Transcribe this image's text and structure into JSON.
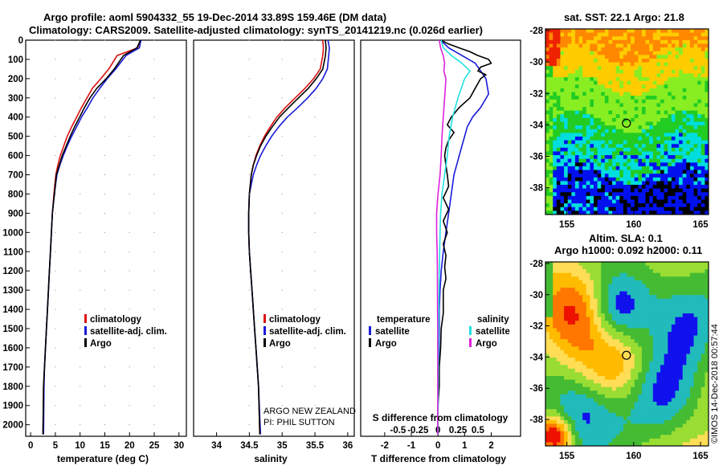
{
  "title": {
    "line1": "Argo profile: aoml 5904332_55 19-Dec-2014 33.89S 159.46E (DM data)",
    "line2": "Climatology: CARS2009. Satellite-adjusted climatology: synTS_20141219.nc (0.026d earlier)"
  },
  "colors": {
    "climatology": "#dd1111",
    "satellite": "#1a1ad8",
    "argo": "#000000",
    "satellite_s": "#22e0e0",
    "argo_s": "#dd22dd"
  },
  "depth_ticks": [
    "0",
    "100",
    "200",
    "300",
    "400",
    "500",
    "600",
    "700",
    "800",
    "900",
    "1000",
    "1100",
    "1200",
    "1300",
    "1400",
    "1500",
    "1600",
    "1700",
    "1800",
    "1900",
    "2000"
  ],
  "panels": {
    "temperature": {
      "xlabel": "temperature (deg C)",
      "xticks": [
        "0",
        "5",
        "10",
        "15",
        "20",
        "25",
        "30"
      ],
      "legend": [
        "climatology",
        "satellite-adj. clim.",
        "Argo"
      ]
    },
    "salinity": {
      "xlabel": "salinity",
      "xticks": [
        "34",
        "34.5",
        "35",
        "35.5",
        "36"
      ],
      "legend": [
        "climatology",
        "satellite-adj. clim.",
        "Argo"
      ],
      "note1": "ARGO NEW ZEALAND",
      "note2": "PI: PHIL SUTTON"
    },
    "difference": {
      "xlabel": "T difference from climatology",
      "xticks": [
        "-2",
        "-1",
        "0",
        "1",
        "2"
      ],
      "top_xlabel": "S difference from climatology",
      "top_xticks": [
        "-0.5",
        "-0.25",
        "0",
        "0.25",
        "0.5"
      ],
      "legend_t_title": "temperature",
      "legend_t": [
        "satellite",
        "Argo"
      ],
      "legend_s_title": "salinity",
      "legend_s": [
        "satellite",
        "Argo"
      ]
    }
  },
  "maps": {
    "sst": {
      "title": "sat. SST: 22.1  Argo: 21.8",
      "yticks": [
        "-28",
        "-30",
        "-32",
        "-34",
        "-36",
        "-38"
      ],
      "xticks": [
        "155",
        "160",
        "165"
      ],
      "marker": {
        "lon": 159.46,
        "lat": -33.89
      },
      "colors": [
        "#ee2200",
        "#ff8800",
        "#ffcc00",
        "#88ee22",
        "#22cc22",
        "#00dddd",
        "#0011ee",
        "#000000"
      ]
    },
    "sla": {
      "title1": "Altim. SLA: 0.1",
      "title2": "Argo h1000: 0.092 h2000: 0.11",
      "yticks": [
        "-28",
        "-30",
        "-32",
        "-34",
        "-36",
        "-38"
      ],
      "xticks": [
        "155",
        "160",
        "165"
      ],
      "marker": {
        "lon": 159.46,
        "lat": -33.89
      },
      "colors": [
        "#ee1100",
        "#ff7700",
        "#ffbb00",
        "#ffdd55",
        "#99dd33",
        "#44bb33",
        "#22bbbb",
        "#1111ee"
      ]
    }
  },
  "credit": "©IMOS 14-Dec-2018 00:57:44",
  "chart_data": [
    {
      "type": "line",
      "title": "temperature (deg C)",
      "xlabel": "temperature (deg C)",
      "ylabel": "",
      "xlim": [
        -1,
        31.5
      ],
      "ylim": [
        2060,
        0
      ],
      "y_reversed": true,
      "series": [
        {
          "name": "climatology",
          "x": [
            22.3,
            21.6,
            17.5,
            15.8,
            14.2,
            12.5,
            11.4,
            10.3,
            9.3,
            8.3,
            7.4,
            6.7,
            6.0,
            5.5,
            5.1,
            4.7,
            4.4,
            4.2,
            4.0,
            3.8,
            3.6,
            3.4,
            3.2,
            3.0,
            2.8,
            2.6,
            2.5
          ],
          "y": [
            0,
            40,
            80,
            150,
            200,
            250,
            300,
            350,
            400,
            450,
            500,
            550,
            600,
            650,
            700,
            800,
            900,
            1000,
            1100,
            1200,
            1300,
            1400,
            1500,
            1600,
            1700,
            1800,
            2050
          ]
        },
        {
          "name": "satellite-adj. clim.",
          "x": [
            22.3,
            22.0,
            19.3,
            17.2,
            15.5,
            14.0,
            12.6,
            11.5,
            10.3,
            9.3,
            8.3,
            7.4,
            6.6,
            5.9,
            5.3,
            4.8,
            4.4,
            4.2,
            4.0,
            3.8,
            3.6,
            3.4,
            3.2,
            3.0,
            2.8,
            2.7,
            2.6
          ],
          "y": [
            0,
            40,
            80,
            150,
            200,
            250,
            300,
            350,
            400,
            450,
            500,
            550,
            600,
            650,
            700,
            800,
            900,
            1000,
            1100,
            1200,
            1300,
            1400,
            1500,
            1600,
            1700,
            1800,
            2050
          ]
        },
        {
          "name": "Argo",
          "x": [
            22.2,
            21.5,
            18.8,
            16.9,
            15.3,
            13.4,
            12.0,
            10.9,
            9.9,
            8.9,
            8.0,
            7.2,
            6.4,
            5.8,
            5.2,
            4.8,
            4.4,
            4.2,
            4.0,
            3.8,
            3.6,
            3.4,
            3.2,
            3.0,
            2.8,
            2.6,
            2.5
          ],
          "y": [
            0,
            40,
            80,
            150,
            200,
            250,
            300,
            350,
            400,
            450,
            500,
            550,
            600,
            650,
            700,
            800,
            900,
            1000,
            1100,
            1200,
            1300,
            1400,
            1500,
            1600,
            1700,
            1800,
            2050
          ]
        }
      ]
    },
    {
      "type": "line",
      "title": "salinity",
      "xlabel": "salinity",
      "ylabel": "",
      "xlim": [
        33.65,
        36.1
      ],
      "ylim": [
        2060,
        0
      ],
      "y_reversed": true,
      "series": [
        {
          "name": "climatology",
          "x": [
            35.62,
            35.63,
            35.62,
            35.58,
            35.48,
            35.35,
            35.2,
            35.05,
            34.92,
            34.82,
            34.73,
            34.66,
            34.6,
            34.56,
            34.53,
            34.5,
            34.49,
            34.49,
            34.5,
            34.52,
            34.54,
            34.56,
            34.58,
            34.6,
            34.62,
            34.64,
            34.66
          ],
          "y": [
            0,
            40,
            80,
            150,
            200,
            250,
            300,
            350,
            400,
            450,
            500,
            550,
            600,
            650,
            700,
            800,
            900,
            1000,
            1100,
            1200,
            1300,
            1400,
            1500,
            1600,
            1700,
            1800,
            2050
          ]
        },
        {
          "name": "satellite-adj. clim.",
          "x": [
            35.7,
            35.72,
            35.71,
            35.69,
            35.62,
            35.52,
            35.39,
            35.24,
            35.08,
            34.95,
            34.84,
            34.75,
            34.67,
            34.61,
            34.56,
            34.5,
            34.49,
            34.49,
            34.5,
            34.52,
            34.54,
            34.56,
            34.58,
            34.6,
            34.62,
            34.64,
            34.67
          ],
          "y": [
            0,
            40,
            80,
            150,
            200,
            250,
            300,
            350,
            400,
            450,
            500,
            550,
            600,
            650,
            700,
            800,
            900,
            1000,
            1100,
            1200,
            1300,
            1400,
            1500,
            1600,
            1700,
            1800,
            2050
          ]
        },
        {
          "name": "Argo",
          "x": [
            35.66,
            35.67,
            35.66,
            35.62,
            35.52,
            35.4,
            35.25,
            35.1,
            34.96,
            34.85,
            34.75,
            34.67,
            34.61,
            34.56,
            34.53,
            34.5,
            34.49,
            34.49,
            34.5,
            34.52,
            34.54,
            34.56,
            34.58,
            34.6,
            34.62,
            34.64,
            34.66
          ],
          "y": [
            0,
            40,
            80,
            150,
            200,
            250,
            300,
            350,
            400,
            450,
            500,
            550,
            600,
            650,
            700,
            800,
            900,
            1000,
            1100,
            1200,
            1300,
            1400,
            1500,
            1600,
            1700,
            1800,
            2050
          ]
        }
      ]
    },
    {
      "type": "line",
      "title": "T difference from climatology",
      "xlabel": "T difference from climatology",
      "ylabel": "",
      "xlim": [
        -2.9,
        3.1
      ],
      "ylim": [
        2060,
        0
      ],
      "y_reversed": true,
      "series": [
        {
          "name": "temperature satellite",
          "x": [
            0.1,
            0.4,
            0.9,
            1.4,
            1.6,
            1.8,
            1.9,
            1.6,
            1.3,
            1.1,
            1.0,
            0.9,
            0.7,
            0.6,
            0.5,
            0.4,
            0.3,
            0.2,
            0.12,
            0.08,
            0.05,
            0.05,
            0.03,
            0.0,
            0.0
          ],
          "y": [
            0,
            40,
            80,
            120,
            160,
            200,
            280,
            350,
            400,
            450,
            500,
            550,
            650,
            700,
            800,
            900,
            1000,
            1100,
            1200,
            1300,
            1400,
            1500,
            1700,
            1900,
            2050
          ]
        },
        {
          "name": "temperature Argo",
          "x": [
            0.1,
            0.4,
            0.8,
            1.2,
            1.5,
            1.9,
            2.0,
            1.6,
            1.5,
            1.8,
            1.6,
            1.4,
            1.2,
            0.8,
            0.5,
            0.35,
            0.6,
            0.4,
            0.3,
            0.25,
            0.3,
            0.35,
            0.4,
            0.2,
            0.4,
            0.2,
            0.35,
            0.2,
            0.3,
            0.25,
            0.3,
            0.2,
            0.2,
            0.2,
            0.12,
            0.1,
            0.05,
            0.05,
            0.0,
            0.0
          ],
          "y": [
            0,
            20,
            40,
            60,
            80,
            100,
            120,
            140,
            160,
            180,
            200,
            250,
            300,
            350,
            400,
            440,
            480,
            520,
            560,
            600,
            650,
            700,
            760,
            820,
            880,
            940,
            1000,
            1060,
            1120,
            1180,
            1240,
            1300,
            1360,
            1420,
            1500,
            1600,
            1700,
            1800,
            1900,
            2050
          ]
        },
        {
          "name": "salinity satellite",
          "x": [
            0.12,
            0.2,
            0.5,
            0.9,
            1.2,
            1.0,
            0.75,
            0.55,
            0.42,
            0.35,
            0.25,
            0.15,
            0.1,
            0.08,
            0.05,
            0.03,
            0.02,
            0.01,
            0.0
          ],
          "y": [
            0,
            40,
            80,
            120,
            160,
            200,
            300,
            400,
            500,
            600,
            700,
            800,
            900,
            1000,
            1200,
            1400,
            1600,
            1800,
            2050
          ]
        },
        {
          "name": "salinity Argo",
          "x": [
            0.05,
            0.1,
            0.2,
            0.25,
            0.22,
            0.3,
            0.25,
            0.2,
            0.15,
            0.12,
            0.08,
            0.0,
            -0.05,
            -0.05,
            -0.03,
            -0.02,
            -0.02,
            -0.01,
            -0.01,
            -0.01
          ],
          "y": [
            0,
            40,
            80,
            120,
            160,
            200,
            300,
            400,
            500,
            600,
            700,
            800,
            900,
            1000,
            1100,
            1200,
            1300,
            1500,
            1700,
            2050
          ]
        }
      ]
    }
  ]
}
